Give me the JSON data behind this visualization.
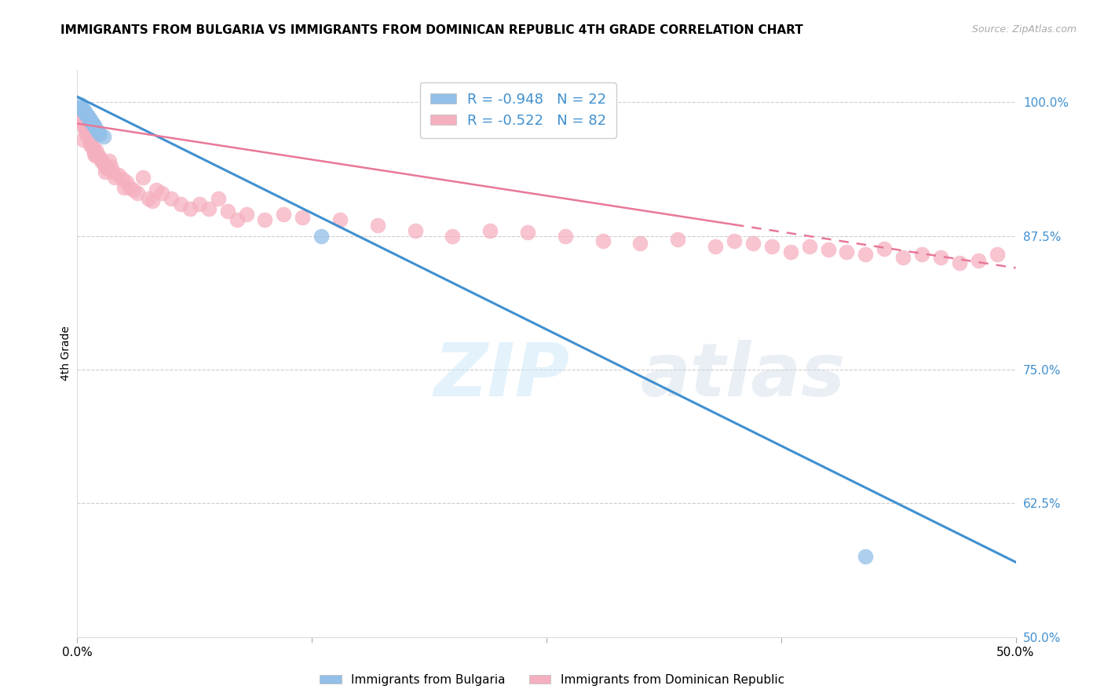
{
  "title": "IMMIGRANTS FROM BULGARIA VS IMMIGRANTS FROM DOMINICAN REPUBLIC 4TH GRADE CORRELATION CHART",
  "source_text": "Source: ZipAtlas.com",
  "ylabel": "4th Grade",
  "xlim": [
    0.0,
    50.0
  ],
  "ylim": [
    50.0,
    103.0
  ],
  "yticks": [
    50.0,
    62.5,
    75.0,
    87.5,
    100.0
  ],
  "ytick_labels": [
    "50.0%",
    "62.5%",
    "75.0%",
    "87.5%",
    "100.0%"
  ],
  "xticks": [
    0.0,
    12.5,
    25.0,
    37.5,
    50.0
  ],
  "xtick_labels": [
    "0.0%",
    "",
    "",
    "",
    "50.0%"
  ],
  "watermark_zip": "ZIP",
  "watermark_atlas": "atlas",
  "legend_r_bulgaria": "R = -0.948",
  "legend_n_bulgaria": "N = 22",
  "legend_r_dominican": "R = -0.522",
  "legend_n_dominican": "N = 82",
  "legend_label_bulgaria": "Immigrants from Bulgaria",
  "legend_label_dominican": "Immigrants from Dominican Republic",
  "bulgaria_color": "#92c0e8",
  "dominican_color": "#f5b0c0",
  "bulgaria_line_color": "#4090d0",
  "dominican_line_color": "#e87898",
  "background_color": "#ffffff",
  "grid_color": "#cccccc",
  "title_fontsize": 11,
  "axis_label_fontsize": 10,
  "bulgaria_scatter_x": [
    0.15,
    0.2,
    0.25,
    0.3,
    0.35,
    0.4,
    0.45,
    0.5,
    0.55,
    0.6,
    0.65,
    0.7,
    0.75,
    0.8,
    0.85,
    0.9,
    1.0,
    1.1,
    1.2,
    1.4,
    13.0,
    42.0
  ],
  "bulgaria_scatter_y": [
    99.8,
    99.5,
    99.5,
    99.3,
    99.2,
    99.0,
    99.0,
    98.8,
    98.7,
    98.5,
    98.5,
    98.3,
    98.2,
    98.0,
    97.9,
    97.8,
    97.5,
    97.2,
    97.0,
    96.8,
    87.5,
    57.5
  ],
  "dominican_scatter_x": [
    0.1,
    0.15,
    0.2,
    0.25,
    0.3,
    0.35,
    0.4,
    0.45,
    0.5,
    0.55,
    0.6,
    0.65,
    0.7,
    0.75,
    0.8,
    0.85,
    0.9,
    0.95,
    1.0,
    1.1,
    1.2,
    1.3,
    1.4,
    1.5,
    1.6,
    1.7,
    1.8,
    1.9,
    2.0,
    2.2,
    2.4,
    2.6,
    2.8,
    3.0,
    3.2,
    3.5,
    3.8,
    4.0,
    4.5,
    5.0,
    5.5,
    6.0,
    6.5,
    7.0,
    7.5,
    8.0,
    9.0,
    10.0,
    11.0,
    12.0,
    14.0,
    16.0,
    18.0,
    20.0,
    22.0,
    24.0,
    26.0,
    28.0,
    30.0,
    32.0,
    34.0,
    35.0,
    36.0,
    37.0,
    38.0,
    39.0,
    40.0,
    41.0,
    42.0,
    43.0,
    44.0,
    45.0,
    46.0,
    47.0,
    48.0,
    49.0,
    0.3,
    0.5,
    1.5,
    2.5,
    4.2,
    8.5
  ],
  "dominican_scatter_y": [
    99.0,
    98.8,
    98.5,
    98.2,
    98.0,
    97.8,
    97.5,
    97.3,
    97.0,
    97.2,
    96.8,
    96.5,
    96.0,
    96.3,
    95.8,
    95.5,
    95.2,
    95.0,
    95.5,
    95.0,
    94.8,
    94.5,
    94.2,
    94.0,
    93.8,
    94.5,
    94.0,
    93.5,
    93.0,
    93.2,
    92.8,
    92.5,
    92.0,
    91.8,
    91.5,
    93.0,
    91.0,
    90.8,
    91.5,
    91.0,
    90.5,
    90.0,
    90.5,
    90.0,
    91.0,
    89.8,
    89.5,
    89.0,
    89.5,
    89.2,
    89.0,
    88.5,
    88.0,
    87.5,
    88.0,
    87.8,
    87.5,
    87.0,
    86.8,
    87.2,
    86.5,
    87.0,
    86.8,
    86.5,
    86.0,
    86.5,
    86.2,
    86.0,
    85.8,
    86.3,
    85.5,
    85.8,
    85.5,
    85.0,
    85.2,
    85.8,
    96.5,
    97.5,
    93.5,
    92.0,
    91.8,
    89.0
  ]
}
